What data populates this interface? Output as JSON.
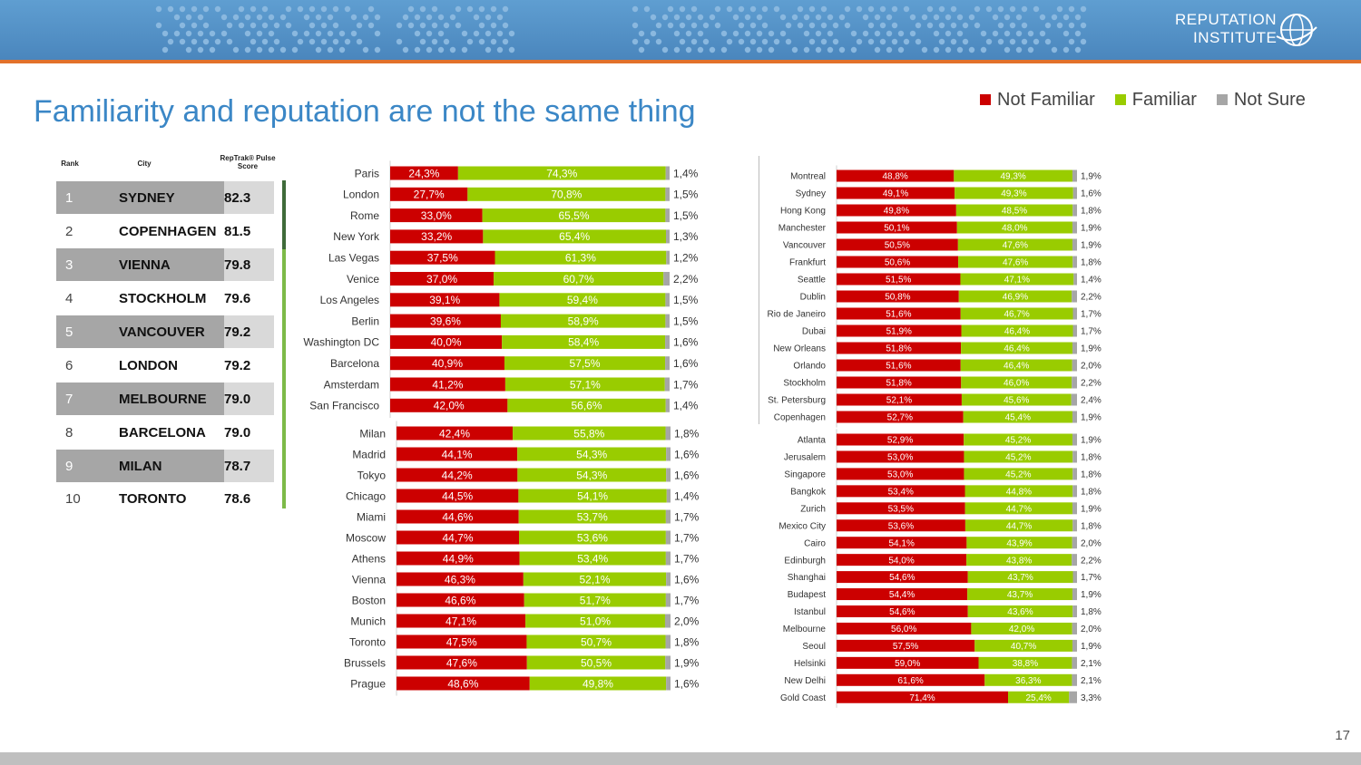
{
  "header": {
    "logo_line1": "REPUTATION",
    "logo_line2": "INSTITUTE",
    "band_color": "#4f8cc4",
    "accent_color": "#e2712b"
  },
  "title": "Familiarity and reputation are not the same thing",
  "legend": [
    {
      "label": "Not Familiar",
      "color": "#cc0000"
    },
    {
      "label": "Familiar",
      "color": "#99cc00"
    },
    {
      "label": "Not Sure",
      "color": "#a6a6a6"
    }
  ],
  "rank_table": {
    "headers": {
      "rank": "Rank",
      "city": "City",
      "score_line1": "RepTrak® Pulse",
      "score_line2": "Score"
    },
    "rows": [
      {
        "rank": "1",
        "city": "SYDNEY",
        "score": "82.3"
      },
      {
        "rank": "2",
        "city": "COPENHAGEN",
        "score": "81.5"
      },
      {
        "rank": "3",
        "city": "VIENNA",
        "score": "79.8"
      },
      {
        "rank": "4",
        "city": "STOCKHOLM",
        "score": "79.6"
      },
      {
        "rank": "5",
        "city": "VANCOUVER",
        "score": "79.2"
      },
      {
        "rank": "6",
        "city": "LONDON",
        "score": "79.2"
      },
      {
        "rank": "7",
        "city": "MELBOURNE",
        "score": "79.0"
      },
      {
        "rank": "8",
        "city": "BARCELONA",
        "score": "79.0"
      },
      {
        "rank": "9",
        "city": "MILAN",
        "score": "78.7"
      },
      {
        "rank": "10",
        "city": "TORONTO",
        "score": "78.6"
      }
    ]
  },
  "chart_data": [
    {
      "type": "bar",
      "orientation": "horizontal",
      "stacked": true,
      "categories": [
        "Paris",
        "London",
        "Rome",
        "New York",
        "Las Vegas",
        "Venice",
        "Los Angeles",
        "Berlin",
        "Washington DC",
        "Barcelona",
        "Amsterdam",
        "San Francisco"
      ],
      "series": [
        {
          "name": "Not Familiar",
          "values": [
            24.3,
            27.7,
            33.0,
            33.2,
            37.5,
            37.0,
            39.1,
            39.6,
            40.0,
            40.9,
            41.2,
            42.0
          ],
          "labels": [
            "24,3%",
            "27,7%",
            "33,0%",
            "33,2%",
            "37,5%",
            "37,0%",
            "39,1%",
            "39,6%",
            "40,0%",
            "40,9%",
            "41,2%",
            "42,0%"
          ]
        },
        {
          "name": "Familiar",
          "values": [
            74.3,
            70.8,
            65.5,
            65.4,
            61.3,
            60.7,
            59.4,
            58.9,
            58.4,
            57.5,
            57.1,
            56.6
          ],
          "labels": [
            "74,3%",
            "70,8%",
            "65,5%",
            "65,4%",
            "61,3%",
            "60,7%",
            "59,4%",
            "58,9%",
            "58,4%",
            "57,5%",
            "57,1%",
            "56,6%"
          ]
        },
        {
          "name": "Not Sure",
          "values": [
            1.4,
            1.5,
            1.5,
            1.3,
            1.2,
            2.2,
            1.5,
            1.5,
            1.6,
            1.6,
            1.7,
            1.4
          ],
          "labels": [
            "1,4%",
            "1,5%",
            "1,5%",
            "1,3%",
            "1,2%",
            "2,2%",
            "1,5%",
            "1,5%",
            "1,6%",
            "1,6%",
            "1,7%",
            "1,4%"
          ]
        }
      ]
    },
    {
      "type": "bar",
      "orientation": "horizontal",
      "stacked": true,
      "categories": [
        "Milan",
        "Madrid",
        "Tokyo",
        "Chicago",
        "Miami",
        "Moscow",
        "Athens",
        "Vienna",
        "Boston",
        "Munich",
        "Toronto",
        "Brussels",
        "Prague"
      ],
      "series": [
        {
          "name": "Not Familiar",
          "values": [
            42.4,
            44.1,
            44.2,
            44.5,
            44.6,
            44.7,
            44.9,
            46.3,
            46.6,
            47.1,
            47.5,
            47.6,
            48.6
          ],
          "labels": [
            "42,4%",
            "44,1%",
            "44,2%",
            "44,5%",
            "44,6%",
            "44,7%",
            "44,9%",
            "46,3%",
            "46,6%",
            "47,1%",
            "47,5%",
            "47,6%",
            "48,6%"
          ]
        },
        {
          "name": "Familiar",
          "values": [
            55.8,
            54.3,
            54.3,
            54.1,
            53.7,
            53.6,
            53.4,
            52.1,
            51.7,
            51.0,
            50.7,
            50.5,
            49.8
          ],
          "labels": [
            "55,8%",
            "54,3%",
            "54,3%",
            "54,1%",
            "53,7%",
            "53,6%",
            "53,4%",
            "52,1%",
            "51,7%",
            "51,0%",
            "50,7%",
            "50,5%",
            "49,8%"
          ]
        },
        {
          "name": "Not Sure",
          "values": [
            1.8,
            1.6,
            1.6,
            1.4,
            1.7,
            1.7,
            1.7,
            1.6,
            1.7,
            2.0,
            1.8,
            1.9,
            1.6
          ],
          "labels": [
            "1,8%",
            "1,6%",
            "1,6%",
            "1,4%",
            "1,7%",
            "1,7%",
            "1,7%",
            "1,6%",
            "1,7%",
            "2,0%",
            "1,8%",
            "1,9%",
            "1,6%"
          ]
        }
      ]
    },
    {
      "type": "bar",
      "orientation": "horizontal",
      "stacked": true,
      "categories": [
        "Montreal",
        "Sydney",
        "Hong Kong",
        "Manchester",
        "Vancouver",
        "Frankfurt",
        "Seattle",
        "Dublin",
        "Rio de Janeiro",
        "Dubai",
        "New Orleans",
        "Orlando",
        "Stockholm",
        "St. Petersburg",
        "Copenhagen"
      ],
      "series": [
        {
          "name": "Not Familiar",
          "values": [
            48.8,
            49.1,
            49.8,
            50.1,
            50.5,
            50.6,
            51.5,
            50.8,
            51.6,
            51.9,
            51.8,
            51.6,
            51.8,
            52.1,
            52.7
          ],
          "labels": [
            "48,8%",
            "49,1%",
            "49,8%",
            "50,1%",
            "50,5%",
            "50,6%",
            "51,5%",
            "50,8%",
            "51,6%",
            "51,9%",
            "51,8%",
            "51,6%",
            "51,8%",
            "52,1%",
            "52,7%"
          ]
        },
        {
          "name": "Familiar",
          "values": [
            49.3,
            49.3,
            48.5,
            48.0,
            47.6,
            47.6,
            47.1,
            46.9,
            46.7,
            46.4,
            46.4,
            46.4,
            46.0,
            45.6,
            45.4
          ],
          "labels": [
            "49,3%",
            "49,3%",
            "48,5%",
            "48,0%",
            "47,6%",
            "47,6%",
            "47,1%",
            "46,9%",
            "46,7%",
            "46,4%",
            "46,4%",
            "46,4%",
            "46,0%",
            "45,6%",
            "45,4%"
          ]
        },
        {
          "name": "Not Sure",
          "values": [
            1.9,
            1.6,
            1.8,
            1.9,
            1.9,
            1.8,
            1.4,
            2.2,
            1.7,
            1.7,
            1.9,
            2.0,
            2.2,
            2.4,
            1.9
          ],
          "labels": [
            "1,9%",
            "1,6%",
            "1,8%",
            "1,9%",
            "1,9%",
            "1,8%",
            "1,4%",
            "2,2%",
            "1,7%",
            "1,7%",
            "1,9%",
            "2,0%",
            "2,2%",
            "2,4%",
            "1,9%"
          ]
        }
      ]
    },
    {
      "type": "bar",
      "orientation": "horizontal",
      "stacked": true,
      "categories": [
        "Atlanta",
        "Jerusalem",
        "Singapore",
        "Bangkok",
        "Zurich",
        "Mexico City",
        "Cairo",
        "Edinburgh",
        "Shanghai",
        "Budapest",
        "Istanbul",
        "Melbourne",
        "Seoul",
        "Helsinki",
        "New Delhi",
        "Gold Coast"
      ],
      "series": [
        {
          "name": "Not Familiar",
          "values": [
            52.9,
            53.0,
            53.0,
            53.4,
            53.5,
            53.6,
            54.1,
            54.0,
            54.6,
            54.4,
            54.6,
            56.0,
            57.5,
            59.0,
            61.6,
            71.4
          ],
          "labels": [
            "52,9%",
            "53,0%",
            "53,0%",
            "53,4%",
            "53,5%",
            "53,6%",
            "54,1%",
            "54,0%",
            "54,6%",
            "54,4%",
            "54,6%",
            "56,0%",
            "57,5%",
            "59,0%",
            "61,6%",
            "71,4%"
          ]
        },
        {
          "name": "Familiar",
          "values": [
            45.2,
            45.2,
            45.2,
            44.8,
            44.7,
            44.7,
            43.9,
            43.8,
            43.7,
            43.7,
            43.6,
            42.0,
            40.7,
            38.8,
            36.3,
            25.4
          ],
          "labels": [
            "45,2%",
            "45,2%",
            "45,2%",
            "44,8%",
            "44,7%",
            "44,7%",
            "43,9%",
            "43,8%",
            "43,7%",
            "43,7%",
            "43,6%",
            "42,0%",
            "40,7%",
            "38,8%",
            "36,3%",
            "25,4%"
          ]
        },
        {
          "name": "Not Sure",
          "values": [
            1.9,
            1.8,
            1.8,
            1.8,
            1.9,
            1.8,
            2.0,
            2.2,
            1.7,
            1.9,
            1.8,
            2.0,
            1.9,
            2.1,
            2.1,
            3.3
          ],
          "labels": [
            "1,9%",
            "1,8%",
            "1,8%",
            "1,8%",
            "1,9%",
            "1,8%",
            "2,0%",
            "2,2%",
            "1,7%",
            "1,9%",
            "1,8%",
            "2,0%",
            "1,9%",
            "2,1%",
            "2,1%",
            "3,3%"
          ]
        }
      ]
    }
  ],
  "page_number": "17"
}
